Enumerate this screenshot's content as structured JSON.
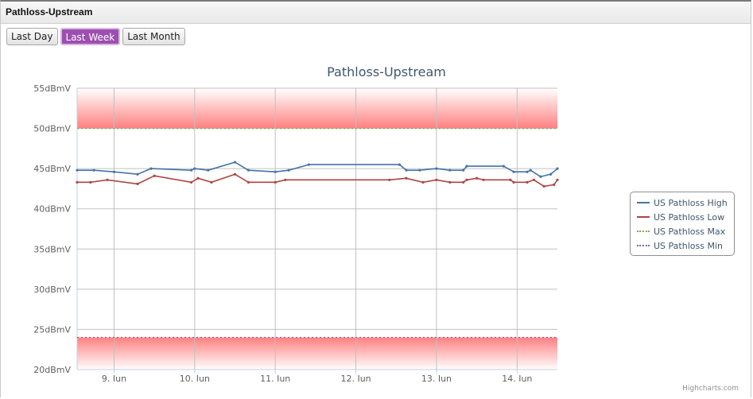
{
  "panel": {
    "title": "Pathloss-Upstream"
  },
  "range_buttons": [
    {
      "label": "Last Day",
      "active": false
    },
    {
      "label": "Last Week",
      "active": true
    },
    {
      "label": "Last Month",
      "active": false
    }
  ],
  "credit": "Highcharts.com",
  "colors": {
    "high": "#4572a7",
    "low": "#aa4643",
    "max": "#89a54e",
    "min": "#80699b",
    "band": "#ff8080",
    "accent": "#9c4fb0"
  },
  "chart_data": {
    "type": "line",
    "title": "Pathloss-Upstream",
    "y_unit": "dBmV",
    "ylim": [
      20,
      55
    ],
    "y_ticks": [
      "20dBmV",
      "25dBmV",
      "30dBmV",
      "35dBmV",
      "40dBmV",
      "45dBmV",
      "50dBmV",
      "55dBmV"
    ],
    "y_tick_values": [
      20,
      25,
      30,
      35,
      40,
      45,
      50,
      55
    ],
    "xlim": [
      "2015-06-08 13:00",
      "2015-06-14 12:00"
    ],
    "x_ticks": [
      {
        "label": "9. Jun",
        "date": "2015-06-09 00:00"
      },
      {
        "label": "10. Jun",
        "date": "2015-06-10 00:00"
      },
      {
        "label": "11. Jun",
        "date": "2015-06-11 00:00"
      },
      {
        "label": "12. Jun",
        "date": "2015-06-12 00:00"
      },
      {
        "label": "13. Jun",
        "date": "2015-06-13 00:00"
      },
      {
        "label": "14. Jun",
        "date": "2015-06-14 00:00"
      }
    ],
    "grid": true,
    "legend_position": "right",
    "plot_bands": [
      {
        "from": 50,
        "to": 55
      },
      {
        "from": 20,
        "to": 24
      }
    ],
    "series": [
      {
        "name": "US Pathloss High",
        "points": [
          [
            "2015-06-08 13:00",
            44.8
          ],
          [
            "2015-06-08 18:00",
            44.8
          ],
          [
            "2015-06-09 00:00",
            44.6
          ],
          [
            "2015-06-09 07:00",
            44.3
          ],
          [
            "2015-06-09 11:00",
            45.0
          ],
          [
            "2015-06-09 23:00",
            44.8
          ],
          [
            "2015-06-10 00:00",
            45.0
          ],
          [
            "2015-06-10 04:00",
            44.8
          ],
          [
            "2015-06-10 12:00",
            45.8
          ],
          [
            "2015-06-10 16:00",
            44.8
          ],
          [
            "2015-06-11 00:00",
            44.6
          ],
          [
            "2015-06-11 04:00",
            44.8
          ],
          [
            "2015-06-11 10:00",
            45.5
          ],
          [
            "2015-06-12 13:00",
            45.5
          ],
          [
            "2015-06-12 15:00",
            44.8
          ],
          [
            "2015-06-12 19:00",
            44.8
          ],
          [
            "2015-06-13 00:00",
            45.0
          ],
          [
            "2015-06-13 04:00",
            44.8
          ],
          [
            "2015-06-13 08:00",
            44.8
          ],
          [
            "2015-06-13 09:00",
            45.3
          ],
          [
            "2015-06-13 20:00",
            45.3
          ],
          [
            "2015-06-13 23:00",
            44.6
          ],
          [
            "2015-06-14 03:00",
            44.6
          ],
          [
            "2015-06-14 04:00",
            44.8
          ],
          [
            "2015-06-14 07:00",
            44.0
          ],
          [
            "2015-06-14 10:00",
            44.3
          ],
          [
            "2015-06-14 12:00",
            45.0
          ]
        ]
      },
      {
        "name": "US Pathloss Low",
        "points": [
          [
            "2015-06-08 13:00",
            43.3
          ],
          [
            "2015-06-08 17:00",
            43.3
          ],
          [
            "2015-06-08 22:00",
            43.6
          ],
          [
            "2015-06-09 07:00",
            43.1
          ],
          [
            "2015-06-09 12:00",
            44.1
          ],
          [
            "2015-06-09 23:00",
            43.3
          ],
          [
            "2015-06-10 01:00",
            43.8
          ],
          [
            "2015-06-10 05:00",
            43.3
          ],
          [
            "2015-06-10 12:00",
            44.3
          ],
          [
            "2015-06-10 16:00",
            43.3
          ],
          [
            "2015-06-11 00:00",
            43.3
          ],
          [
            "2015-06-11 03:00",
            43.6
          ],
          [
            "2015-06-12 10:00",
            43.6
          ],
          [
            "2015-06-12 15:00",
            43.8
          ],
          [
            "2015-06-12 20:00",
            43.3
          ],
          [
            "2015-06-13 00:00",
            43.6
          ],
          [
            "2015-06-13 04:00",
            43.3
          ],
          [
            "2015-06-13 08:00",
            43.3
          ],
          [
            "2015-06-13 09:00",
            43.6
          ],
          [
            "2015-06-13 12:00",
            43.8
          ],
          [
            "2015-06-13 14:00",
            43.6
          ],
          [
            "2015-06-13 22:00",
            43.6
          ],
          [
            "2015-06-13 23:00",
            43.3
          ],
          [
            "2015-06-14 03:00",
            43.3
          ],
          [
            "2015-06-14 05:00",
            43.6
          ],
          [
            "2015-06-14 08:00",
            42.8
          ],
          [
            "2015-06-14 11:00",
            43.0
          ],
          [
            "2015-06-14 12:00",
            43.6
          ]
        ]
      },
      {
        "name": "US Pathloss Max",
        "points": [
          [
            "2015-06-08 13:00",
            50
          ],
          [
            "2015-06-14 12:00",
            50
          ]
        ]
      },
      {
        "name": "US Pathloss Min",
        "points": [
          [
            "2015-06-08 13:00",
            24
          ],
          [
            "2015-06-14 12:00",
            24
          ]
        ]
      }
    ]
  }
}
